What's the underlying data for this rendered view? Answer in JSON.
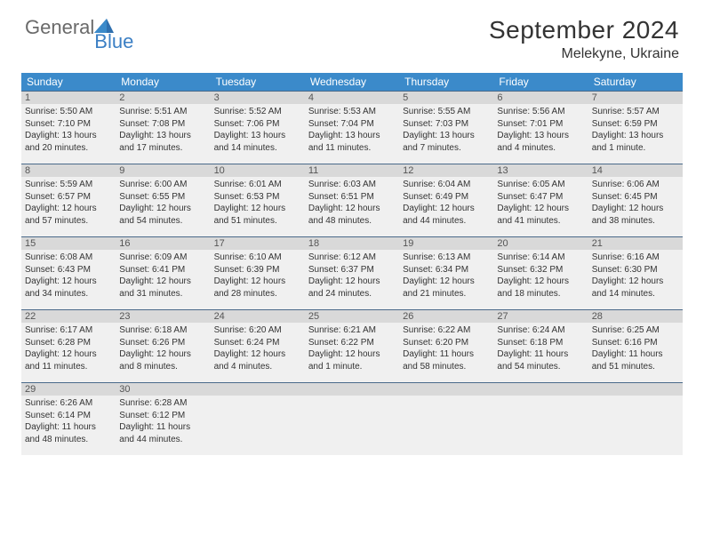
{
  "logo": {
    "text1": "General",
    "text2": "Blue",
    "color_grey": "#6a6a6a",
    "color_blue": "#3b7fc4"
  },
  "title": "September 2024",
  "location": "Melekyne, Ukraine",
  "header_bg": "#3b8aca",
  "header_fg": "#ffffff",
  "daynum_bg": "#d9d9d9",
  "cell_bg": "#f0f0f0",
  "daynum_border": "#4a6a8a",
  "columns": [
    "Sunday",
    "Monday",
    "Tuesday",
    "Wednesday",
    "Thursday",
    "Friday",
    "Saturday"
  ],
  "weeks": [
    [
      {
        "n": "1",
        "sunrise": "5:50 AM",
        "sunset": "7:10 PM",
        "daylight": "13 hours and 20 minutes."
      },
      {
        "n": "2",
        "sunrise": "5:51 AM",
        "sunset": "7:08 PM",
        "daylight": "13 hours and 17 minutes."
      },
      {
        "n": "3",
        "sunrise": "5:52 AM",
        "sunset": "7:06 PM",
        "daylight": "13 hours and 14 minutes."
      },
      {
        "n": "4",
        "sunrise": "5:53 AM",
        "sunset": "7:04 PM",
        "daylight": "13 hours and 11 minutes."
      },
      {
        "n": "5",
        "sunrise": "5:55 AM",
        "sunset": "7:03 PM",
        "daylight": "13 hours and 7 minutes."
      },
      {
        "n": "6",
        "sunrise": "5:56 AM",
        "sunset": "7:01 PM",
        "daylight": "13 hours and 4 minutes."
      },
      {
        "n": "7",
        "sunrise": "5:57 AM",
        "sunset": "6:59 PM",
        "daylight": "13 hours and 1 minute."
      }
    ],
    [
      {
        "n": "8",
        "sunrise": "5:59 AM",
        "sunset": "6:57 PM",
        "daylight": "12 hours and 57 minutes."
      },
      {
        "n": "9",
        "sunrise": "6:00 AM",
        "sunset": "6:55 PM",
        "daylight": "12 hours and 54 minutes."
      },
      {
        "n": "10",
        "sunrise": "6:01 AM",
        "sunset": "6:53 PM",
        "daylight": "12 hours and 51 minutes."
      },
      {
        "n": "11",
        "sunrise": "6:03 AM",
        "sunset": "6:51 PM",
        "daylight": "12 hours and 48 minutes."
      },
      {
        "n": "12",
        "sunrise": "6:04 AM",
        "sunset": "6:49 PM",
        "daylight": "12 hours and 44 minutes."
      },
      {
        "n": "13",
        "sunrise": "6:05 AM",
        "sunset": "6:47 PM",
        "daylight": "12 hours and 41 minutes."
      },
      {
        "n": "14",
        "sunrise": "6:06 AM",
        "sunset": "6:45 PM",
        "daylight": "12 hours and 38 minutes."
      }
    ],
    [
      {
        "n": "15",
        "sunrise": "6:08 AM",
        "sunset": "6:43 PM",
        "daylight": "12 hours and 34 minutes."
      },
      {
        "n": "16",
        "sunrise": "6:09 AM",
        "sunset": "6:41 PM",
        "daylight": "12 hours and 31 minutes."
      },
      {
        "n": "17",
        "sunrise": "6:10 AM",
        "sunset": "6:39 PM",
        "daylight": "12 hours and 28 minutes."
      },
      {
        "n": "18",
        "sunrise": "6:12 AM",
        "sunset": "6:37 PM",
        "daylight": "12 hours and 24 minutes."
      },
      {
        "n": "19",
        "sunrise": "6:13 AM",
        "sunset": "6:34 PM",
        "daylight": "12 hours and 21 minutes."
      },
      {
        "n": "20",
        "sunrise": "6:14 AM",
        "sunset": "6:32 PM",
        "daylight": "12 hours and 18 minutes."
      },
      {
        "n": "21",
        "sunrise": "6:16 AM",
        "sunset": "6:30 PM",
        "daylight": "12 hours and 14 minutes."
      }
    ],
    [
      {
        "n": "22",
        "sunrise": "6:17 AM",
        "sunset": "6:28 PM",
        "daylight": "12 hours and 11 minutes."
      },
      {
        "n": "23",
        "sunrise": "6:18 AM",
        "sunset": "6:26 PM",
        "daylight": "12 hours and 8 minutes."
      },
      {
        "n": "24",
        "sunrise": "6:20 AM",
        "sunset": "6:24 PM",
        "daylight": "12 hours and 4 minutes."
      },
      {
        "n": "25",
        "sunrise": "6:21 AM",
        "sunset": "6:22 PM",
        "daylight": "12 hours and 1 minute."
      },
      {
        "n": "26",
        "sunrise": "6:22 AM",
        "sunset": "6:20 PM",
        "daylight": "11 hours and 58 minutes."
      },
      {
        "n": "27",
        "sunrise": "6:24 AM",
        "sunset": "6:18 PM",
        "daylight": "11 hours and 54 minutes."
      },
      {
        "n": "28",
        "sunrise": "6:25 AM",
        "sunset": "6:16 PM",
        "daylight": "11 hours and 51 minutes."
      }
    ],
    [
      {
        "n": "29",
        "sunrise": "6:26 AM",
        "sunset": "6:14 PM",
        "daylight": "11 hours and 48 minutes."
      },
      {
        "n": "30",
        "sunrise": "6:28 AM",
        "sunset": "6:12 PM",
        "daylight": "11 hours and 44 minutes."
      },
      null,
      null,
      null,
      null,
      null
    ]
  ]
}
